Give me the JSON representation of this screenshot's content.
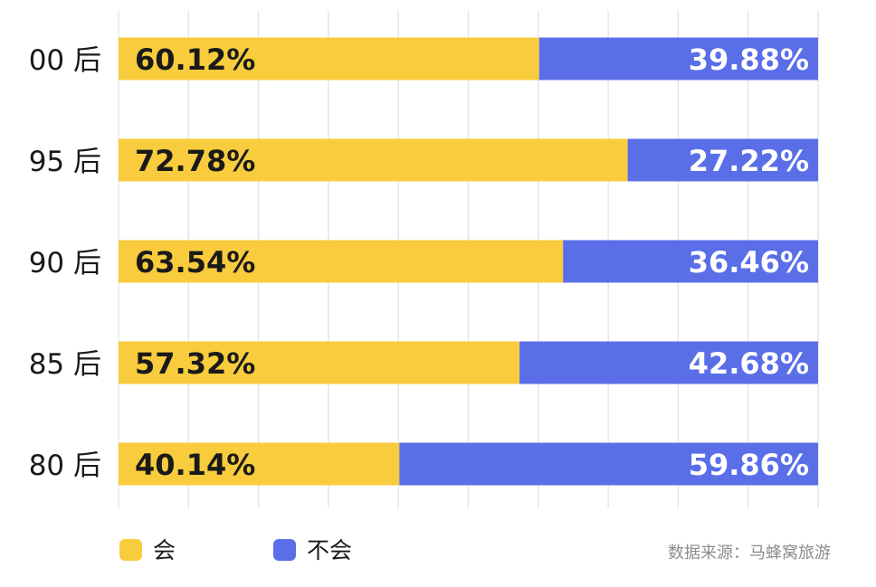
{
  "chart_data": {
    "type": "bar",
    "stacked": true,
    "orientation": "horizontal",
    "categories": [
      "00 后",
      "95 后",
      "90 后",
      "85 后",
      "80 后"
    ],
    "series": [
      {
        "name": "会",
        "color": "#f8cc3c",
        "values": [
          60.12,
          72.78,
          63.54,
          57.32,
          40.14
        ],
        "labels": [
          "60.12%",
          "72.78%",
          "63.54%",
          "57.32%",
          "40.14%"
        ]
      },
      {
        "name": "不会",
        "color": "#5a6ee8",
        "values": [
          39.88,
          27.22,
          36.46,
          42.68,
          59.86
        ],
        "labels": [
          "39.88%",
          "27.22%",
          "36.46%",
          "42.68%",
          "59.86%"
        ]
      }
    ],
    "xlim": [
      0,
      100
    ],
    "grid": true,
    "legend_position": "bottom-left",
    "source": "数据来源：马蜂窝旅游"
  }
}
